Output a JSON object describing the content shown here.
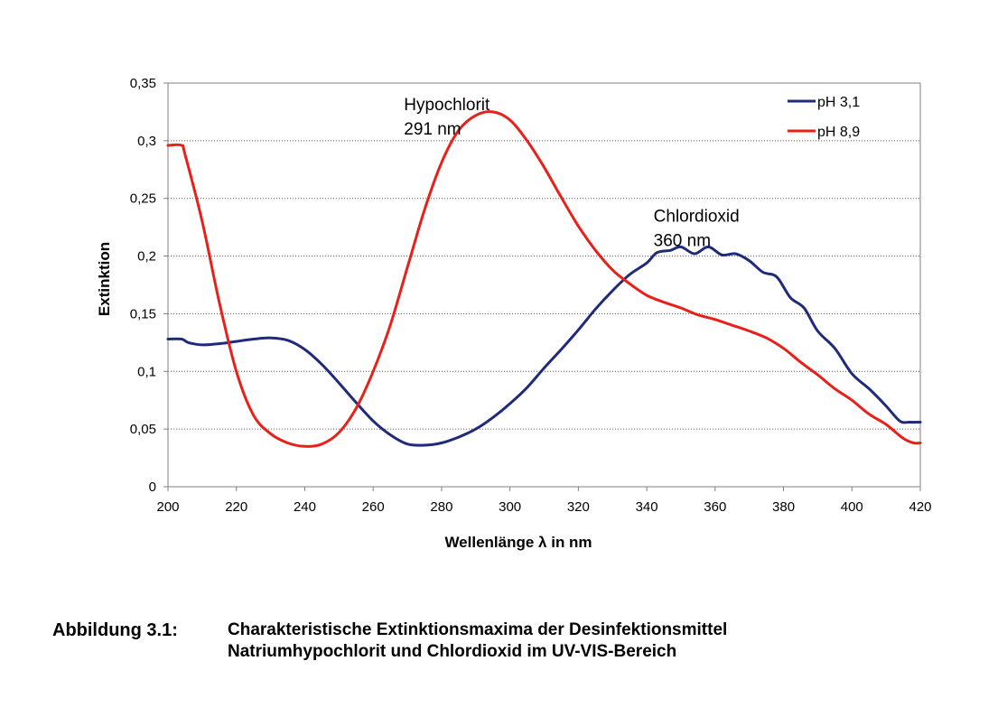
{
  "chart_data": {
    "type": "line",
    "xlabel": "Wellenlänge λ in nm",
    "ylabel": "Extinktion",
    "xlim": [
      200,
      420
    ],
    "ylim": [
      0,
      0.35
    ],
    "x_ticks": [
      200,
      220,
      240,
      260,
      280,
      300,
      320,
      340,
      360,
      380,
      400,
      420
    ],
    "x_tick_labels": [
      "200",
      "220",
      "240",
      "260",
      "280",
      "300",
      "320",
      "340",
      "360",
      "380",
      "400",
      "420"
    ],
    "y_ticks": [
      0,
      0.05,
      0.1,
      0.15,
      0.2,
      0.25,
      0.3,
      0.35
    ],
    "y_tick_labels": [
      "0",
      "0,05",
      "0,1",
      "0,15",
      "0,2",
      "0,25",
      "0,3",
      "0,35"
    ],
    "grid": "horizontal dotted",
    "legend_position": "top-right",
    "series": [
      {
        "name": "pH 3,1",
        "color": "#1f2a7a",
        "points": [
          [
            200,
            0.128
          ],
          [
            204,
            0.128
          ],
          [
            206,
            0.125
          ],
          [
            210,
            0.123
          ],
          [
            215,
            0.124
          ],
          [
            220,
            0.126
          ],
          [
            225,
            0.128
          ],
          [
            230,
            0.129
          ],
          [
            235,
            0.127
          ],
          [
            240,
            0.119
          ],
          [
            245,
            0.106
          ],
          [
            250,
            0.09
          ],
          [
            255,
            0.073
          ],
          [
            260,
            0.057
          ],
          [
            265,
            0.045
          ],
          [
            270,
            0.037
          ],
          [
            275,
            0.036
          ],
          [
            280,
            0.038
          ],
          [
            285,
            0.043
          ],
          [
            290,
            0.05
          ],
          [
            295,
            0.06
          ],
          [
            300,
            0.072
          ],
          [
            305,
            0.086
          ],
          [
            310,
            0.103
          ],
          [
            315,
            0.119
          ],
          [
            320,
            0.136
          ],
          [
            325,
            0.154
          ],
          [
            330,
            0.17
          ],
          [
            335,
            0.184
          ],
          [
            340,
            0.194
          ],
          [
            343,
            0.203
          ],
          [
            347,
            0.205
          ],
          [
            350,
            0.208
          ],
          [
            354,
            0.202
          ],
          [
            358,
            0.208
          ],
          [
            362,
            0.201
          ],
          [
            366,
            0.202
          ],
          [
            370,
            0.196
          ],
          [
            374,
            0.186
          ],
          [
            378,
            0.182
          ],
          [
            382,
            0.164
          ],
          [
            386,
            0.155
          ],
          [
            390,
            0.135
          ],
          [
            395,
            0.12
          ],
          [
            400,
            0.098
          ],
          [
            405,
            0.085
          ],
          [
            410,
            0.07
          ],
          [
            414,
            0.057
          ],
          [
            417,
            0.056
          ],
          [
            420,
            0.056
          ]
        ]
      },
      {
        "name": "pH 8,9",
        "color": "#e8201a",
        "points": [
          [
            200,
            0.296
          ],
          [
            204,
            0.296
          ],
          [
            205,
            0.288
          ],
          [
            210,
            0.23
          ],
          [
            215,
            0.16
          ],
          [
            220,
            0.1
          ],
          [
            225,
            0.062
          ],
          [
            230,
            0.046
          ],
          [
            235,
            0.038
          ],
          [
            240,
            0.035
          ],
          [
            245,
            0.037
          ],
          [
            250,
            0.047
          ],
          [
            255,
            0.068
          ],
          [
            260,
            0.1
          ],
          [
            265,
            0.14
          ],
          [
            270,
            0.19
          ],
          [
            275,
            0.24
          ],
          [
            280,
            0.281
          ],
          [
            285,
            0.309
          ],
          [
            290,
            0.322
          ],
          [
            295,
            0.325
          ],
          [
            300,
            0.318
          ],
          [
            305,
            0.3
          ],
          [
            310,
            0.277
          ],
          [
            315,
            0.251
          ],
          [
            320,
            0.226
          ],
          [
            325,
            0.205
          ],
          [
            330,
            0.188
          ],
          [
            335,
            0.176
          ],
          [
            340,
            0.166
          ],
          [
            345,
            0.16
          ],
          [
            350,
            0.155
          ],
          [
            355,
            0.149
          ],
          [
            360,
            0.145
          ],
          [
            365,
            0.14
          ],
          [
            370,
            0.135
          ],
          [
            375,
            0.129
          ],
          [
            380,
            0.12
          ],
          [
            385,
            0.108
          ],
          [
            390,
            0.097
          ],
          [
            395,
            0.085
          ],
          [
            400,
            0.075
          ],
          [
            405,
            0.063
          ],
          [
            410,
            0.054
          ],
          [
            415,
            0.042
          ],
          [
            418,
            0.038
          ],
          [
            420,
            0.038
          ]
        ]
      }
    ],
    "annotations": [
      {
        "lines": [
          "Hypochlorit",
          "291 nm"
        ],
        "x": 269,
        "y": 0.34
      },
      {
        "lines": [
          "Chlordioxid",
          "360 nm"
        ],
        "x": 342,
        "y": 0.243
      }
    ]
  },
  "caption": {
    "number": "Abbildung 3.1:",
    "line1": "Charakteristische Extinktionsmaxima der Desinfektionsmittel",
    "line2": "Natriumhypochlorit und Chlordioxid im UV-VIS-Bereich"
  }
}
